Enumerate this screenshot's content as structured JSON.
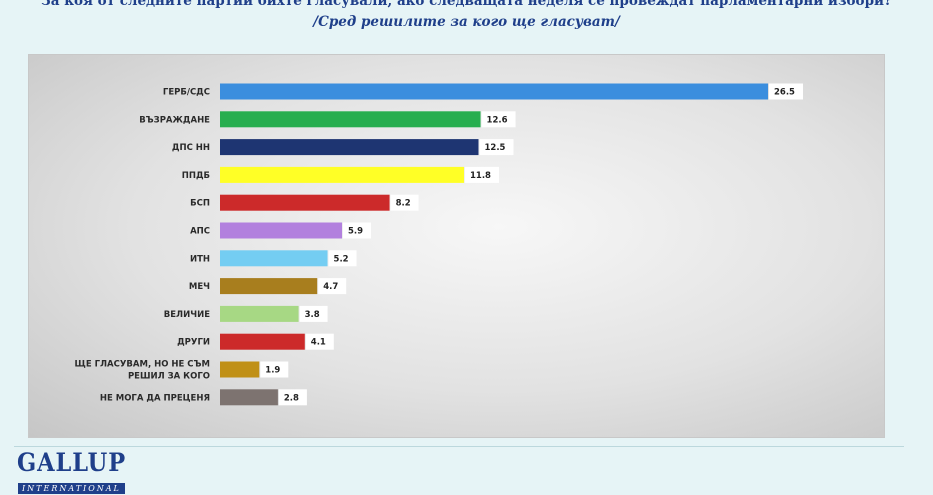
{
  "header": {
    "title": "За коя от следните партии бихте гласували,  ако следващата неделя се провеждат парламентарни избори?",
    "subtitle": "/Сред решилите за кого ще гласуват/"
  },
  "logo": {
    "main": "GALLUP",
    "sub": "INTERNATIONAL"
  },
  "chart_data": {
    "type": "bar",
    "orientation": "horizontal",
    "title": "За коя от следните партии бихте гласували,  ако следващата неделя се провеждат парламентарни избори?",
    "subtitle": "/Сред решилите за кого ще гласуват/",
    "categories": [
      "ГЕРБ/СДС",
      "ВЪЗРАЖДАНЕ",
      "ДПС НН",
      "ППДБ",
      "БСП",
      "АПС",
      "ИТН",
      "МЕЧ",
      "ВЕЛИЧИЕ",
      "ДРУГИ",
      "ЩЕ ГЛАСУВАМ, НО НЕ СЪМ РЕШИЛ ЗА КОГО",
      "НЕ МОГА ДА ПРЕЦЕНЯ"
    ],
    "values": [
      26.5,
      12.6,
      12.5,
      11.8,
      8.2,
      5.9,
      5.2,
      4.7,
      3.8,
      4.1,
      1.9,
      2.8
    ],
    "value_labels": [
      "26.5",
      "12.6",
      "12.5",
      "11.8",
      "8.2",
      "5.9",
      "5.2",
      "4.7",
      "3.8",
      "4.1",
      "1.9",
      "2.8"
    ],
    "colors": [
      "#3b8ede",
      "#27ae4f",
      "#1e3572",
      "#ffff26",
      "#cc2a2a",
      "#b280de",
      "#74cdf2",
      "#a87e1e",
      "#a7d884",
      "#cc2a2a",
      "#c09016",
      "#7d7370"
    ],
    "xlim": [
      0,
      26.5
    ],
    "grid": false,
    "legend": "none",
    "xlabel": "",
    "ylabel": ""
  }
}
